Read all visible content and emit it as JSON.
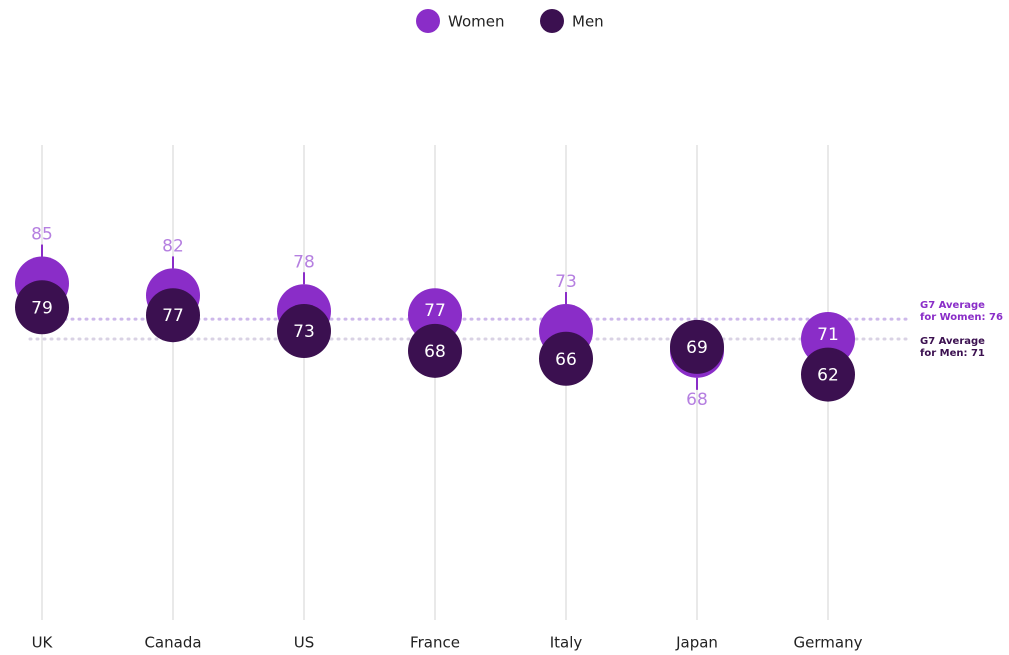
{
  "chart_data": {
    "type": "dot",
    "categories": [
      "UK",
      "Canada",
      "US",
      "France",
      "Italy",
      "Japan",
      "Germany"
    ],
    "series": [
      {
        "name": "Women",
        "color": "#8a2dc8",
        "values": [
          85,
          82,
          78,
          77,
          73,
          68,
          71
        ]
      },
      {
        "name": "Men",
        "color": "#3b1050",
        "values": [
          79,
          77,
          73,
          68,
          66,
          69,
          62
        ]
      }
    ],
    "ylim": [
      0,
      120
    ],
    "averages": [
      {
        "lines": [
          "G7 Average",
          "for Women: 76"
        ],
        "value": 76,
        "color": "#8a2dc8",
        "line_color": "#cdb8ea"
      },
      {
        "lines": [
          "G7 Average",
          "for Men: 71"
        ],
        "value": 71,
        "color": "#3b1050",
        "line_color": "#d9d2e4"
      }
    ],
    "legend": "top"
  }
}
